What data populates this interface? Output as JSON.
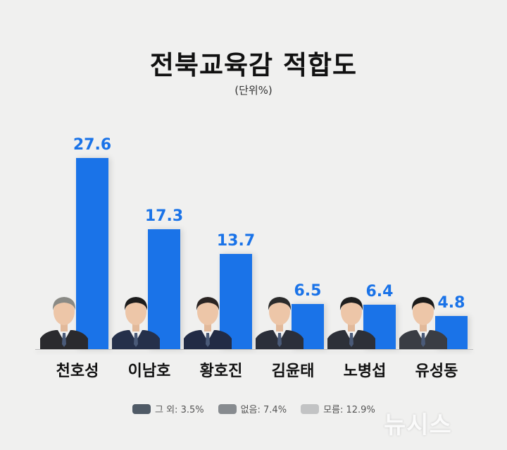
{
  "header": {
    "title": "전북교육감 적합도",
    "unit": "(단위%)"
  },
  "colors": {
    "bar": "#1a73e8",
    "value_text": "#1a73e8",
    "background": "#f0f0ef",
    "legend_other": "#4f5a66",
    "legend_none": "#878b8f",
    "legend_unknown": "#c2c3c4"
  },
  "chart_data": {
    "type": "bar",
    "title": "전북교육감 적합도",
    "subtitle": "(단위%)",
    "xlabel": "",
    "ylabel": "",
    "categories": [
      "천호성",
      "이남호",
      "황호진",
      "김윤태",
      "노병섭",
      "유성동"
    ],
    "values": [
      27.6,
      17.3,
      13.7,
      6.5,
      6.4,
      4.8
    ],
    "value_labels": [
      "27.6",
      "17.3",
      "13.7",
      "6.5",
      "6.4",
      "4.8"
    ],
    "ylim": [
      0,
      30
    ],
    "grid": false,
    "legend_position": "bottom",
    "legend": [
      {
        "label": "그 외: 3.5%",
        "value": 3.5,
        "color": "#4f5a66"
      },
      {
        "label": "없음: 7.4%",
        "value": 7.4,
        "color": "#878b8f"
      },
      {
        "label": "모름: 12.9%",
        "value": 12.9,
        "color": "#c2c3c4"
      }
    ]
  },
  "candidates": [
    {
      "name": "천호성",
      "value": "27.6",
      "photo": "candidate-photo"
    },
    {
      "name": "이남호",
      "value": "17.3",
      "photo": "candidate-photo"
    },
    {
      "name": "황호진",
      "value": "13.7",
      "photo": "candidate-photo"
    },
    {
      "name": "김윤태",
      "value": "6.5",
      "photo": "candidate-photo"
    },
    {
      "name": "노병섭",
      "value": "6.4",
      "photo": "candidate-photo"
    },
    {
      "name": "유성동",
      "value": "4.8",
      "photo": "candidate-photo"
    }
  ],
  "legend": {
    "other": "그 외: 3.5%",
    "none": "없음: 7.4%",
    "unknown": "모름: 12.9%"
  },
  "watermark": "뉴시스"
}
